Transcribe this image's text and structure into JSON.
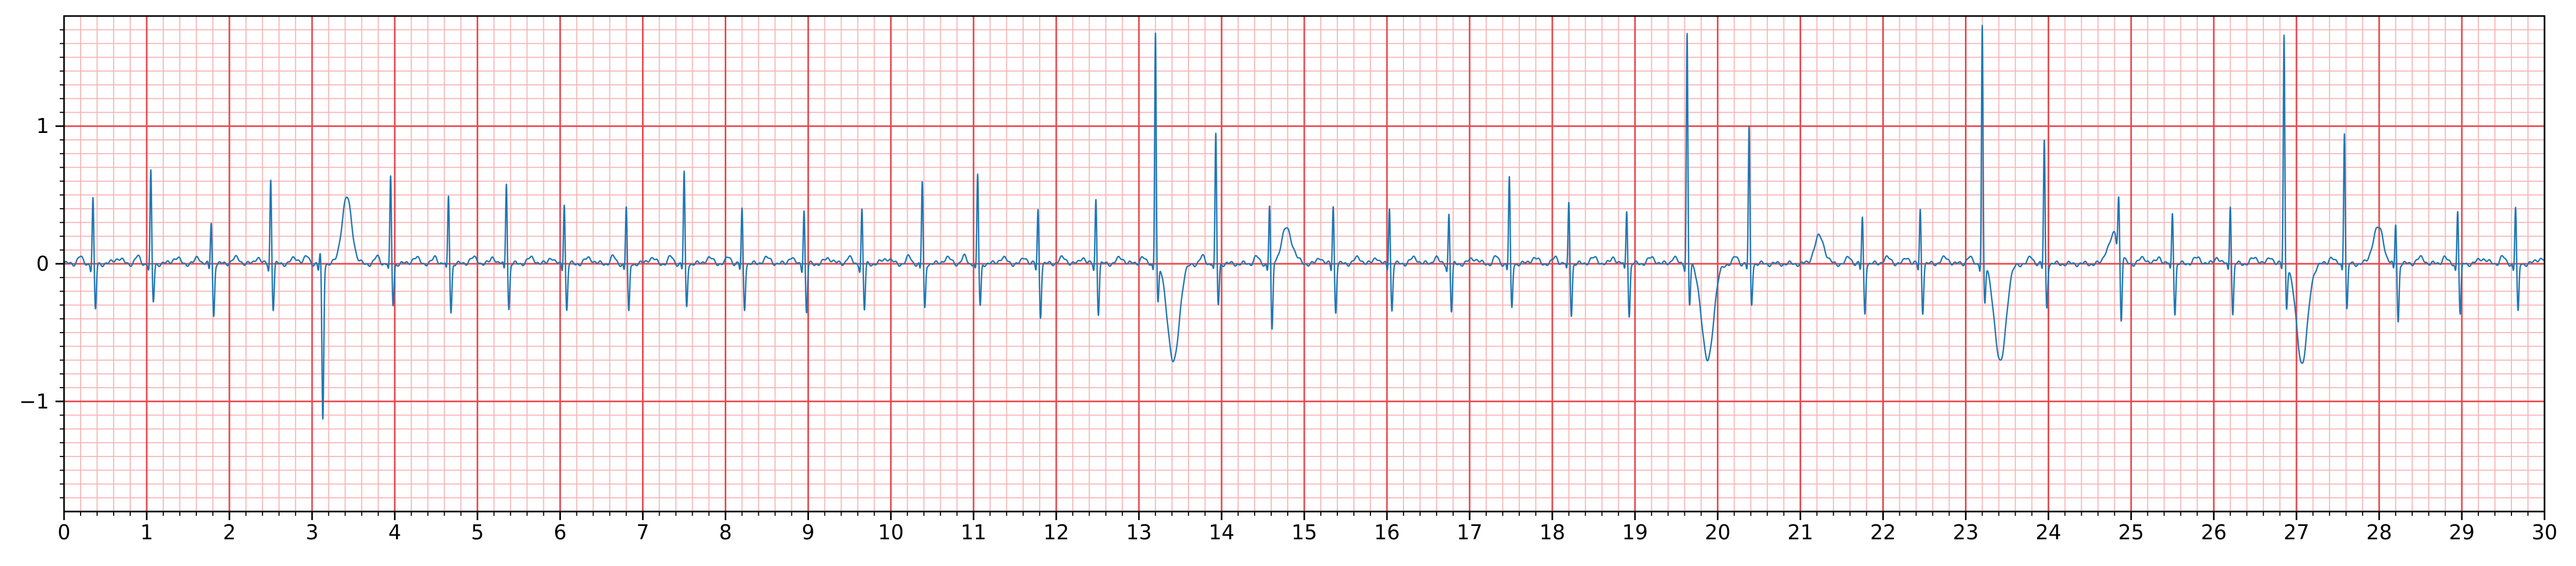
{
  "chart_data": {
    "type": "line",
    "title": "",
    "xlabel": "",
    "ylabel": "",
    "xlim": [
      0,
      30
    ],
    "ylim": [
      -1.8,
      1.8
    ],
    "x_ticks": [
      0,
      1,
      2,
      3,
      4,
      5,
      6,
      7,
      8,
      9,
      10,
      11,
      12,
      13,
      14,
      15,
      16,
      17,
      18,
      19,
      20,
      21,
      22,
      23,
      24,
      25,
      26,
      27,
      28,
      29,
      30
    ],
    "x_tick_labels": [
      "0",
      "1",
      "2",
      "3",
      "4",
      "5",
      "6",
      "7",
      "8",
      "9",
      "10",
      "11",
      "12",
      "13",
      "14",
      "15",
      "16",
      "17",
      "18",
      "19",
      "20",
      "21",
      "22",
      "23",
      "24",
      "25",
      "26",
      "27",
      "28",
      "29",
      "30"
    ],
    "y_ticks": [
      -1,
      0,
      1
    ],
    "y_tick_labels": [
      "−1",
      "0",
      "1"
    ],
    "grid": {
      "major": true,
      "minor": true,
      "major_x_step": 1,
      "major_y_step": 1,
      "minor_x_step": 0.2,
      "minor_y_step": 0.1,
      "major_color": "#e8474c",
      "minor_color": "#f7b6b8"
    },
    "line_color": "#1f77b4",
    "series": [
      {
        "name": "",
        "beats": [
          {
            "t": 0.35,
            "r": 0.48,
            "q": -0.05,
            "s": -0.34
          },
          {
            "t": 1.05,
            "r": 0.67,
            "q": -0.05,
            "s": -0.28
          },
          {
            "t": 1.78,
            "r": 0.31,
            "q": -0.05,
            "s": -0.38
          },
          {
            "t": 2.5,
            "r": 0.62,
            "q": -0.05,
            "s": -0.33
          },
          {
            "t": 3.1,
            "r": 0.08,
            "q": -0.05,
            "s": -1.13,
            "t_wave": 0.48,
            "t_offset": 0.32
          },
          {
            "t": 3.95,
            "r": 0.63,
            "q": -0.05,
            "s": -0.3
          },
          {
            "t": 4.65,
            "r": 0.5,
            "q": -0.05,
            "s": -0.35
          },
          {
            "t": 5.35,
            "r": 0.6,
            "q": -0.05,
            "s": -0.33
          },
          {
            "t": 6.05,
            "r": 0.45,
            "q": -0.05,
            "s": -0.34
          },
          {
            "t": 6.8,
            "r": 0.42,
            "q": -0.05,
            "s": -0.36
          },
          {
            "t": 7.5,
            "r": 0.67,
            "q": -0.05,
            "s": -0.32
          },
          {
            "t": 8.2,
            "r": 0.4,
            "q": -0.05,
            "s": -0.33
          },
          {
            "t": 8.95,
            "r": 0.4,
            "q": -0.05,
            "s": -0.36
          },
          {
            "t": 9.65,
            "r": 0.4,
            "q": -0.05,
            "s": -0.34
          },
          {
            "t": 10.38,
            "r": 0.6,
            "q": -0.05,
            "s": -0.33
          },
          {
            "t": 11.05,
            "r": 0.65,
            "q": -0.05,
            "s": -0.31
          },
          {
            "t": 11.78,
            "r": 0.4,
            "q": -0.05,
            "s": -0.38
          },
          {
            "t": 12.48,
            "r": 0.48,
            "q": -0.05,
            "s": -0.36
          },
          {
            "t": 13.2,
            "r": 1.7,
            "q": -0.05,
            "s": -0.28,
            "wide_dip": -0.73,
            "dip_offset": 0.22
          },
          {
            "t": 13.93,
            "r": 0.94,
            "q": -0.05,
            "s": -0.3,
            "t_wave": 0.25,
            "t_offset": 0.85
          },
          {
            "t": 14.58,
            "r": 0.43,
            "q": -0.05,
            "s": -0.5
          },
          {
            "t": 15.35,
            "r": 0.43,
            "q": -0.05,
            "s": -0.35
          },
          {
            "t": 16.03,
            "r": 0.42,
            "q": -0.05,
            "s": -0.34
          },
          {
            "t": 16.75,
            "r": 0.37,
            "q": -0.05,
            "s": -0.35
          },
          {
            "t": 17.48,
            "r": 0.63,
            "q": -0.05,
            "s": -0.33
          },
          {
            "t": 18.2,
            "r": 0.45,
            "q": -0.05,
            "s": -0.37
          },
          {
            "t": 18.9,
            "r": 0.4,
            "q": -0.05,
            "s": -0.38
          },
          {
            "t": 19.63,
            "r": 1.68,
            "q": -0.05,
            "s": -0.3,
            "wide_dip": -0.73,
            "dip_offset": 0.25
          },
          {
            "t": 20.38,
            "r": 0.99,
            "q": -0.05,
            "s": -0.3,
            "t_wave": 0.2,
            "t_offset": 0.85
          },
          {
            "t": 21.75,
            "r": 0.34,
            "q": -0.05,
            "s": -0.36
          },
          {
            "t": 22.45,
            "r": 0.4,
            "q": -0.05,
            "s": -0.35
          },
          {
            "t": 23.2,
            "r": 1.74,
            "q": -0.05,
            "s": -0.28,
            "wide_dip": -0.73,
            "dip_offset": 0.22
          },
          {
            "t": 23.95,
            "r": 0.9,
            "q": -0.05,
            "s": -0.32,
            "t_wave": 0.22,
            "t_offset": 0.85
          },
          {
            "t": 24.85,
            "r": 0.35,
            "q": -0.05,
            "s": -0.5
          },
          {
            "t": 25.5,
            "r": 0.38,
            "q": -0.05,
            "s": -0.36
          },
          {
            "t": 26.2,
            "r": 0.44,
            "q": -0.05,
            "s": -0.37
          },
          {
            "t": 26.85,
            "r": 1.67,
            "q": -0.05,
            "s": -0.3,
            "wide_dip": -0.73,
            "dip_offset": 0.22
          },
          {
            "t": 27.58,
            "r": 0.97,
            "q": -0.05,
            "s": -0.34,
            "t_wave": 0.25,
            "t_offset": 0.4
          },
          {
            "t": 28.2,
            "r": 0.3,
            "q": -0.05,
            "s": -0.42
          },
          {
            "t": 28.95,
            "r": 0.4,
            "q": -0.05,
            "s": -0.38
          },
          {
            "t": 29.65,
            "r": 0.42,
            "q": -0.05,
            "s": -0.36
          }
        ]
      }
    ]
  }
}
